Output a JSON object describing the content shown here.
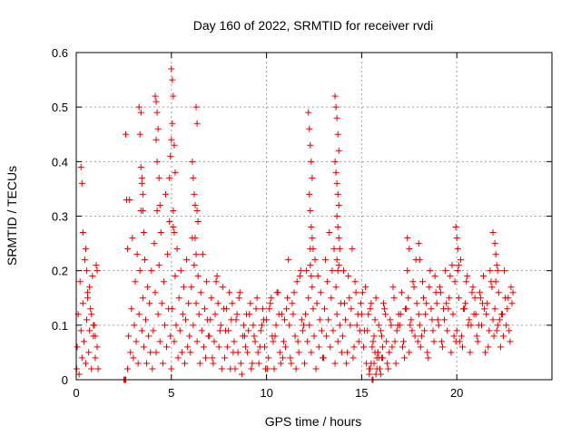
{
  "chart_data": {
    "type": "scatter",
    "title": "Day 160 of 2022, SRMTID for receiver rvdi",
    "xlabel": "GPS time / hours",
    "ylabel": "SRMTID / TECUs",
    "xlim": [
      0,
      25
    ],
    "ylim": [
      0,
      0.6
    ],
    "xticks": [
      0,
      5,
      10,
      15,
      20
    ],
    "yticks": [
      0,
      0.1,
      0.2,
      0.3,
      0.4,
      0.5,
      0.6
    ],
    "xtick_labels": [
      "0",
      "5",
      "10",
      "15",
      "20"
    ],
    "ytick_labels": [
      "0",
      "0.1",
      "0.2",
      "0.3",
      "0.4",
      "0.5",
      "0.6"
    ],
    "grid": true,
    "marker": "plus",
    "color": "#e00000",
    "series": [
      {
        "name": "SRMTID",
        "x": [
          0.02,
          0.05,
          0.1,
          0.15,
          0.2,
          0.25,
          0.3,
          0.35,
          0.4,
          0.45,
          0.5,
          0.55,
          0.6,
          0.65,
          0.7,
          0.75,
          0.8,
          0.85,
          0.9,
          0.95,
          1.0,
          1.05,
          1.1,
          1.15,
          0.25,
          0.3,
          0.35,
          0.5,
          0.55,
          0.6,
          0.7,
          0.8,
          0.9,
          1.0,
          1.1,
          2.5,
          2.55,
          2.6,
          2.7,
          2.75,
          2.8,
          2.85,
          2.9,
          2.95,
          3.0,
          3.05,
          3.1,
          3.15,
          3.2,
          3.25,
          3.3,
          3.35,
          3.4,
          3.45,
          3.5,
          3.55,
          3.6,
          3.65,
          3.7,
          3.75,
          3.8,
          3.85,
          3.9,
          3.95,
          2.6,
          2.65,
          2.7,
          3.3,
          3.35,
          3.4,
          3.45,
          3.5,
          3.55,
          3.4,
          3.45,
          3.5,
          4.0,
          4.05,
          4.1,
          4.15,
          4.2,
          4.25,
          4.3,
          4.35,
          4.4,
          4.45,
          4.5,
          4.55,
          4.6,
          4.65,
          4.7,
          4.75,
          4.8,
          4.85,
          4.9,
          4.95,
          4.15,
          4.2,
          4.25,
          4.3,
          4.2,
          4.25,
          4.35,
          4.4,
          5.0,
          5.05,
          5.1,
          5.15,
          5.2,
          5.25,
          5.3,
          5.35,
          5.4,
          5.45,
          5.5,
          5.55,
          5.6,
          5.65,
          5.7,
          5.75,
          5.8,
          5.85,
          5.9,
          5.95,
          4.9,
          4.95,
          5.0,
          5.05,
          5.0,
          5.05,
          5.1,
          5.15,
          5.2,
          5.1,
          5.15,
          6.0,
          6.05,
          6.1,
          6.15,
          6.2,
          6.25,
          6.3,
          6.35,
          6.4,
          6.45,
          6.5,
          6.55,
          6.6,
          6.65,
          6.7,
          6.75,
          6.8,
          6.85,
          6.9,
          6.95,
          6.1,
          6.15,
          6.2,
          6.3,
          6.35,
          6.4,
          6.25,
          6.3,
          6.35,
          7.0,
          7.1,
          7.2,
          7.3,
          7.4,
          7.5,
          7.6,
          7.7,
          7.8,
          7.9,
          8.0,
          8.1,
          8.2,
          8.3,
          8.4,
          8.5,
          8.6,
          8.7,
          8.8,
          8.9,
          7.05,
          7.25,
          7.45,
          7.65,
          7.85,
          8.05,
          8.25,
          8.45,
          8.65,
          8.85,
          7.15,
          7.35,
          7.55,
          7.75,
          7.95,
          8.15,
          8.35,
          8.55,
          8.75,
          8.95,
          9.0,
          9.1,
          9.2,
          9.3,
          9.4,
          9.5,
          9.6,
          9.7,
          9.8,
          9.9,
          10.0,
          10.1,
          10.2,
          10.3,
          10.4,
          10.5,
          10.6,
          10.7,
          10.8,
          10.9,
          9.05,
          9.25,
          9.45,
          9.65,
          9.85,
          10.05,
          10.25,
          10.45,
          10.65,
          10.85,
          9.15,
          9.35,
          9.55,
          9.75,
          9.95,
          10.15,
          10.35,
          10.55,
          10.75,
          10.95,
          11.0,
          11.1,
          11.2,
          11.3,
          11.4,
          11.5,
          11.6,
          11.7,
          11.8,
          11.9,
          11.05,
          11.25,
          11.45,
          11.65,
          11.85,
          11.15,
          11.35,
          11.55,
          11.75,
          11.95,
          12.0,
          12.05,
          12.1,
          12.15,
          12.2,
          12.25,
          12.3,
          12.35,
          12.4,
          12.45,
          12.5,
          12.55,
          12.6,
          12.65,
          12.7,
          12.75,
          12.8,
          12.85,
          12.9,
          12.95,
          12.2,
          12.25,
          12.3,
          12.35,
          12.4,
          12.25,
          12.3,
          12.35,
          12.4,
          12.45,
          12.3,
          12.35,
          13.0,
          13.05,
          13.1,
          13.15,
          13.2,
          13.25,
          13.3,
          13.35,
          13.4,
          13.45,
          13.5,
          13.55,
          13.6,
          13.65,
          13.7,
          13.75,
          13.8,
          13.85,
          13.9,
          13.95,
          13.6,
          13.65,
          13.7,
          13.75,
          13.8,
          13.6,
          13.65,
          13.7,
          13.75,
          13.8,
          13.7,
          13.75,
          13.8,
          13.85,
          13.7,
          13.75,
          14.0,
          14.1,
          14.2,
          14.3,
          14.4,
          14.5,
          14.6,
          14.7,
          14.8,
          14.9,
          14.05,
          14.25,
          14.45,
          14.65,
          14.85,
          14.15,
          14.35,
          14.55,
          14.75,
          14.95,
          15.0,
          15.1,
          15.2,
          15.3,
          15.4,
          15.5,
          15.6,
          15.7,
          15.8,
          15.9,
          15.05,
          15.25,
          15.45,
          15.65,
          15.85,
          15.15,
          15.35,
          15.55,
          15.75,
          15.95,
          15.4,
          15.5,
          15.6,
          15.7,
          15.8,
          15.9,
          16.0,
          16.1,
          15.45,
          15.55,
          15.65,
          15.75,
          15.85,
          15.95,
          16.05,
          16.0,
          16.1,
          16.2,
          16.3,
          16.4,
          16.5,
          16.6,
          16.7,
          16.8,
          16.9,
          16.05,
          16.25,
          16.45,
          16.65,
          16.85,
          16.15,
          16.35,
          16.55,
          16.75,
          16.95,
          17.0,
          17.1,
          17.2,
          17.3,
          17.4,
          17.5,
          17.6,
          17.7,
          17.8,
          17.9,
          17.05,
          17.25,
          17.45,
          17.65,
          17.85,
          17.15,
          17.35,
          17.55,
          17.75,
          17.95,
          17.4,
          17.5,
          18.0,
          18.05,
          18.0,
          18.1,
          18.2,
          18.3,
          18.4,
          18.5,
          18.6,
          18.7,
          18.8,
          18.9,
          18.05,
          18.25,
          18.45,
          18.65,
          18.85,
          18.15,
          18.35,
          18.55,
          18.75,
          18.95,
          19.0,
          19.1,
          19.2,
          19.3,
          19.4,
          19.5,
          19.6,
          19.7,
          19.8,
          19.9,
          19.05,
          19.25,
          19.45,
          19.65,
          19.85,
          19.15,
          19.35,
          19.55,
          19.75,
          19.95,
          19.95,
          20.0,
          20.05,
          20.1,
          20.0,
          20.1,
          20.2,
          20.3,
          20.4,
          20.5,
          20.6,
          20.7,
          20.8,
          20.9,
          20.05,
          20.25,
          20.45,
          20.65,
          20.85,
          20.15,
          20.35,
          20.55,
          20.75,
          20.95,
          21.0,
          21.1,
          21.2,
          21.3,
          21.4,
          21.5,
          21.6,
          21.7,
          21.8,
          21.9,
          21.05,
          21.25,
          21.45,
          21.65,
          21.85,
          21.15,
          21.35,
          21.55,
          21.75,
          21.95,
          22.0,
          22.1,
          22.2,
          22.3,
          22.4,
          22.5,
          22.6,
          22.7,
          22.8,
          22.9,
          22.05,
          22.25,
          22.45,
          22.65,
          22.85,
          22.15,
          22.35,
          22.55,
          22.75,
          22.95,
          21.9,
          22.0,
          22.05,
          22.1,
          22.15
        ],
        "y": [
          0.02,
          0.06,
          0.12,
          0.01,
          0.18,
          0.09,
          0.04,
          0.14,
          0.07,
          0.22,
          0.03,
          0.11,
          0.16,
          0.05,
          0.09,
          0.13,
          0.02,
          0.19,
          0.08,
          0.1,
          0.04,
          0.21,
          0.06,
          0.02,
          0.39,
          0.36,
          0.27,
          0.24,
          0.2,
          0.15,
          0.17,
          0.12,
          0.1,
          0.08,
          0.2,
          0.0,
          0.0,
          0.0,
          0.02,
          0.08,
          0.33,
          0.05,
          0.13,
          0.26,
          0.04,
          0.1,
          0.18,
          0.07,
          0.23,
          0.03,
          0.12,
          0.2,
          0.31,
          0.09,
          0.15,
          0.06,
          0.22,
          0.11,
          0.03,
          0.17,
          0.08,
          0.14,
          0.05,
          0.2,
          0.45,
          0.33,
          0.24,
          0.5,
          0.45,
          0.39,
          0.36,
          0.31,
          0.27,
          0.49,
          0.37,
          0.34,
          0.02,
          0.09,
          0.25,
          0.16,
          0.05,
          0.31,
          0.12,
          0.21,
          0.07,
          0.27,
          0.14,
          0.03,
          0.18,
          0.1,
          0.34,
          0.06,
          0.23,
          0.13,
          0.29,
          0.08,
          0.52,
          0.51,
          0.49,
          0.46,
          0.44,
          0.4,
          0.37,
          0.32,
          0.02,
          0.13,
          0.28,
          0.07,
          0.19,
          0.1,
          0.24,
          0.04,
          0.15,
          0.09,
          0.2,
          0.05,
          0.12,
          0.17,
          0.03,
          0.11,
          0.22,
          0.06,
          0.14,
          0.08,
          0.37,
          0.41,
          0.44,
          0.47,
          0.57,
          0.55,
          0.52,
          0.43,
          0.38,
          0.31,
          0.27,
          0.05,
          0.17,
          0.26,
          0.1,
          0.21,
          0.32,
          0.14,
          0.07,
          0.19,
          0.12,
          0.03,
          0.16,
          0.09,
          0.23,
          0.06,
          0.13,
          0.04,
          0.18,
          0.11,
          0.08,
          0.4,
          0.37,
          0.34,
          0.5,
          0.47,
          0.29,
          0.26,
          0.23,
          0.31,
          0.08,
          0.15,
          0.03,
          0.12,
          0.19,
          0.06,
          0.1,
          0.17,
          0.04,
          0.13,
          0.09,
          0.02,
          0.14,
          0.07,
          0.11,
          0.05,
          0.16,
          0.01,
          0.1,
          0.06,
          0.11,
          0.07,
          0.14,
          0.02,
          0.09,
          0.16,
          0.05,
          0.12,
          0.03,
          0.08,
          0.04,
          0.18,
          0.09,
          0.13,
          0.06,
          0.11,
          0.02,
          0.15,
          0.08,
          0.12,
          0.05,
          0.12,
          0.02,
          0.1,
          0.07,
          0.15,
          0.03,
          0.09,
          0.13,
          0.06,
          0.11,
          0.04,
          0.14,
          0.08,
          0.02,
          0.1,
          0.16,
          0.05,
          0.12,
          0.07,
          0.09,
          0.03,
          0.13,
          0.06,
          0.11,
          0.02,
          0.15,
          0.08,
          0.12,
          0.04,
          0.14,
          0.08,
          0.05,
          0.1,
          0.02,
          0.13,
          0.07,
          0.16,
          0.03,
          0.11,
          0.06,
          0.15,
          0.1,
          0.03,
          0.12,
          0.08,
          0.18,
          0.05,
          0.2,
          0.09,
          0.13,
          0.04,
          0.16,
          0.07,
          0.11,
          0.22,
          0.14,
          0.02,
          0.19,
          0.1,
          0.03,
          0.12,
          0.2,
          0.07,
          0.15,
          0.1,
          0.24,
          0.05,
          0.17,
          0.13,
          0.08,
          0.22,
          0.02,
          0.14,
          0.19,
          0.06,
          0.11,
          0.16,
          0.09,
          0.04,
          0.49,
          0.46,
          0.43,
          0.4,
          0.37,
          0.34,
          0.31,
          0.28,
          0.26,
          0.24,
          0.21,
          0.19,
          0.04,
          0.13,
          0.22,
          0.08,
          0.18,
          0.11,
          0.27,
          0.06,
          0.15,
          0.2,
          0.09,
          0.24,
          0.03,
          0.17,
          0.12,
          0.07,
          0.21,
          0.1,
          0.14,
          0.05,
          0.52,
          0.5,
          0.48,
          0.45,
          0.42,
          0.4,
          0.38,
          0.36,
          0.34,
          0.32,
          0.3,
          0.28,
          0.26,
          0.24,
          0.22,
          0.2,
          0.08,
          0.14,
          0.03,
          0.19,
          0.1,
          0.24,
          0.06,
          0.16,
          0.12,
          0.09,
          0.2,
          0.05,
          0.13,
          0.18,
          0.07,
          0.11,
          0.15,
          0.04,
          0.1,
          0.14,
          0.12,
          0.06,
          0.17,
          0.09,
          0.02,
          0.14,
          0.07,
          0.11,
          0.04,
          0.1,
          0.16,
          0.03,
          0.13,
          0.08,
          0.05,
          0.09,
          0.12,
          0.06,
          0.15,
          0.02,
          0.01,
          0.03,
          0.0,
          0.05,
          0.02,
          0.04,
          0.01,
          0.06,
          0.02,
          0.0,
          0.03,
          0.01,
          0.05,
          0.02,
          0.04,
          0.09,
          0.04,
          0.13,
          0.07,
          0.02,
          0.11,
          0.06,
          0.15,
          0.03,
          0.1,
          0.08,
          0.12,
          0.05,
          0.17,
          0.09,
          0.14,
          0.03,
          0.1,
          0.07,
          0.12,
          0.1,
          0.16,
          0.07,
          0.13,
          0.2,
          0.05,
          0.11,
          0.18,
          0.08,
          0.14,
          0.12,
          0.04,
          0.15,
          0.09,
          0.22,
          0.06,
          0.13,
          0.1,
          0.17,
          0.07,
          0.26,
          0.24,
          0.25,
          0.22,
          0.12,
          0.06,
          0.18,
          0.09,
          0.14,
          0.04,
          0.2,
          0.11,
          0.07,
          0.16,
          0.1,
          0.15,
          0.05,
          0.13,
          0.19,
          0.08,
          0.12,
          0.17,
          0.09,
          0.14,
          0.11,
          0.17,
          0.07,
          0.13,
          0.2,
          0.09,
          0.15,
          0.05,
          0.12,
          0.18,
          0.1,
          0.06,
          0.14,
          0.19,
          0.08,
          0.16,
          0.11,
          0.13,
          0.21,
          0.07,
          0.28,
          0.26,
          0.24,
          0.21,
          0.09,
          0.15,
          0.22,
          0.06,
          0.13,
          0.18,
          0.1,
          0.05,
          0.16,
          0.12,
          0.2,
          0.08,
          0.14,
          0.11,
          0.17,
          0.07,
          0.13,
          0.19,
          0.1,
          0.15,
          0.12,
          0.07,
          0.16,
          0.1,
          0.19,
          0.05,
          0.14,
          0.09,
          0.18,
          0.11,
          0.08,
          0.15,
          0.13,
          0.06,
          0.17,
          0.1,
          0.14,
          0.12,
          0.2,
          0.08,
          0.13,
          0.09,
          0.16,
          0.06,
          0.12,
          0.2,
          0.1,
          0.15,
          0.07,
          0.14,
          0.18,
          0.11,
          0.08,
          0.13,
          0.17,
          0.1,
          0.12,
          0.15,
          0.09,
          0.16,
          0.27,
          0.25,
          0.23,
          0.21,
          0.2
        ]
      }
    ]
  }
}
